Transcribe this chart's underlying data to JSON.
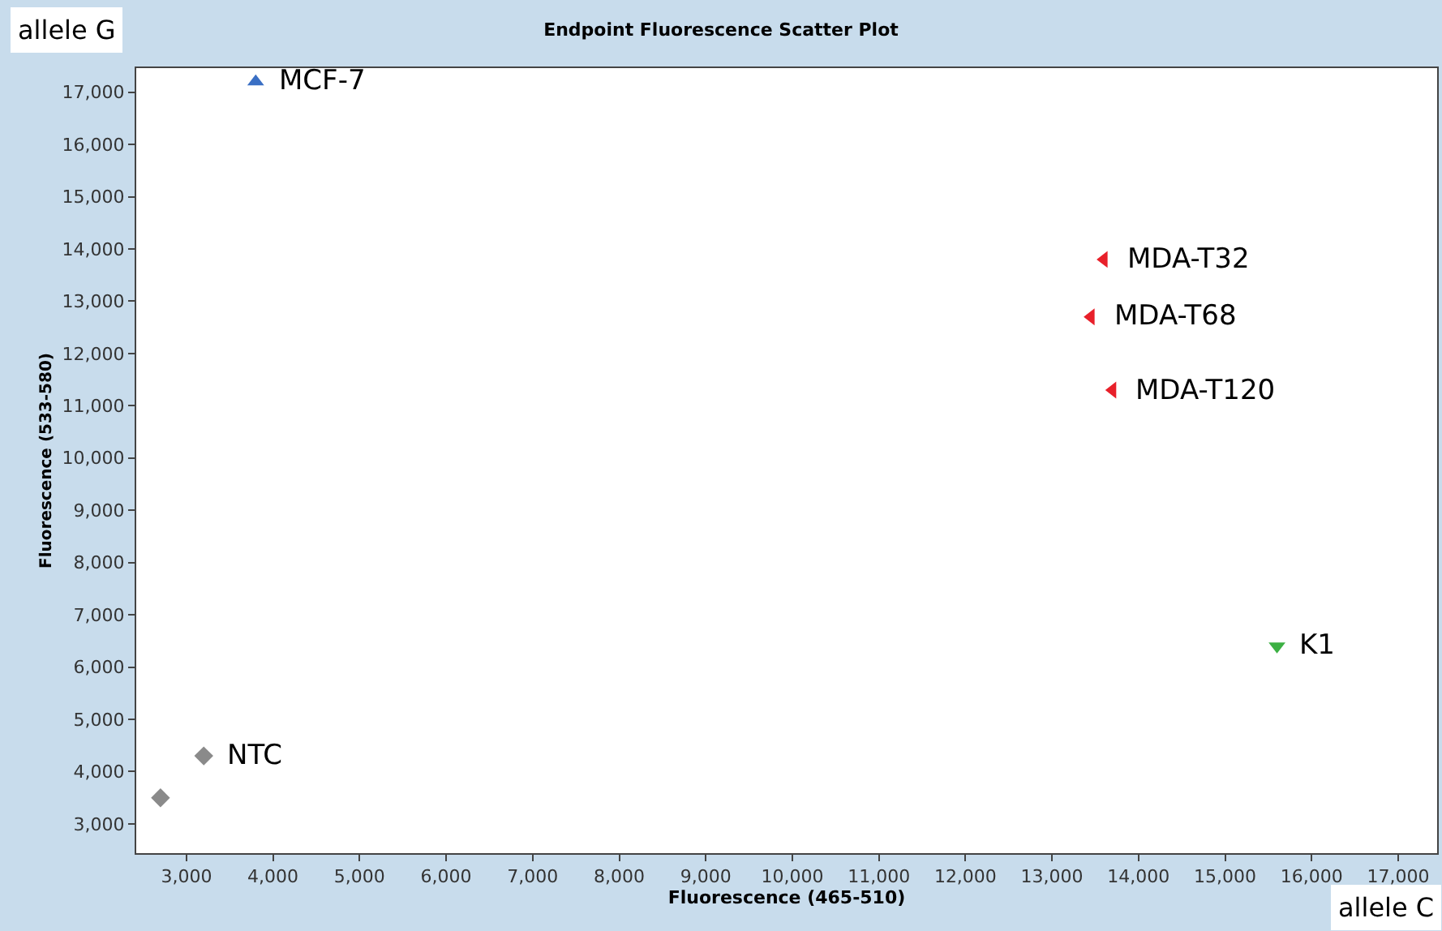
{
  "chart_data": {
    "type": "scatter",
    "title": "Endpoint Fluorescence Scatter Plot",
    "xlabel": "Fluorescence (465-510)",
    "ylabel": "Fluorescence (533-580)",
    "xlim": [
      2420,
      17450
    ],
    "ylim": [
      2440,
      17460
    ],
    "xticks": [
      {
        "value": 3000,
        "label": "3,000"
      },
      {
        "value": 4000,
        "label": "4,000"
      },
      {
        "value": 5000,
        "label": "5,000"
      },
      {
        "value": 6000,
        "label": "6,000"
      },
      {
        "value": 7000,
        "label": "7,000"
      },
      {
        "value": 8000,
        "label": "8,000"
      },
      {
        "value": 9000,
        "label": "9,000"
      },
      {
        "value": 10000,
        "label": "10,000"
      },
      {
        "value": 11000,
        "label": "11,000"
      },
      {
        "value": 12000,
        "label": "12,000"
      },
      {
        "value": 13000,
        "label": "13,000"
      },
      {
        "value": 14000,
        "label": "14,000"
      },
      {
        "value": 15000,
        "label": "15,000"
      },
      {
        "value": 16000,
        "label": "16,000"
      },
      {
        "value": 17000,
        "label": "17,000"
      }
    ],
    "yticks": [
      {
        "value": 3000,
        "label": "3,000"
      },
      {
        "value": 4000,
        "label": "4,000"
      },
      {
        "value": 5000,
        "label": "5,000"
      },
      {
        "value": 6000,
        "label": "6,000"
      },
      {
        "value": 7000,
        "label": "7,000"
      },
      {
        "value": 8000,
        "label": "8,000"
      },
      {
        "value": 9000,
        "label": "9,000"
      },
      {
        "value": 10000,
        "label": "10,000"
      },
      {
        "value": 11000,
        "label": "11,000"
      },
      {
        "value": 12000,
        "label": "12,000"
      },
      {
        "value": 13000,
        "label": "13,000"
      },
      {
        "value": 14000,
        "label": "14,000"
      },
      {
        "value": 15000,
        "label": "15,000"
      },
      {
        "value": 16000,
        "label": "16,000"
      },
      {
        "value": 17000,
        "label": "17,000"
      }
    ],
    "series": [
      {
        "color": "#3a6fc4",
        "marker": "triangle",
        "x": [
          3800
        ],
        "values": [
          17200
        ]
      },
      {
        "color": "#e8202a",
        "marker": "triangle-left",
        "x": [
          13600,
          13450,
          13700
        ],
        "values": [
          13800,
          12700,
          11300
        ]
      },
      {
        "color": "#3cb043",
        "marker": "triangle-down",
        "x": [
          15600
        ],
        "values": [
          6400
        ]
      },
      {
        "color": "#8a8a8a",
        "marker": "diamond",
        "x": [
          2700,
          3200
        ],
        "values": [
          3500,
          4300
        ]
      }
    ],
    "annotations": [
      {
        "text": "MCF-7",
        "x": 3800,
        "y": 17200
      },
      {
        "text": "MDA-T32",
        "x": 13600,
        "y": 13800
      },
      {
        "text": "MDA-T68",
        "x": 13450,
        "y": 12700
      },
      {
        "text": "MDA-T120",
        "x": 13700,
        "y": 11300
      },
      {
        "text": "K1",
        "x": 15600,
        "y": 6400
      },
      {
        "text": "NTC",
        "x": 3200,
        "y": 4300
      },
      "allele G",
      "allele C"
    ]
  }
}
